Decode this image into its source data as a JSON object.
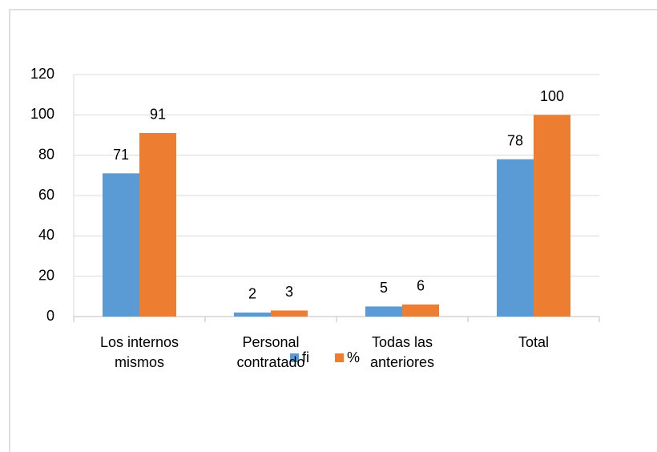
{
  "chart_data": {
    "type": "bar",
    "categories": [
      "Los internos mismos",
      "Personal contratado",
      "Todas las anteriores",
      "Total"
    ],
    "series": [
      {
        "name": "fi",
        "color": "#5b9bd5",
        "values": [
          71,
          2,
          5,
          78
        ]
      },
      {
        "name": "%",
        "color": "#ed7d31",
        "values": [
          91,
          3,
          6,
          100
        ]
      }
    ],
    "ylim": [
      0,
      120
    ],
    "yticks": [
      0,
      20,
      40,
      60,
      80,
      100,
      120
    ],
    "grid": true,
    "legend": "bottom"
  }
}
